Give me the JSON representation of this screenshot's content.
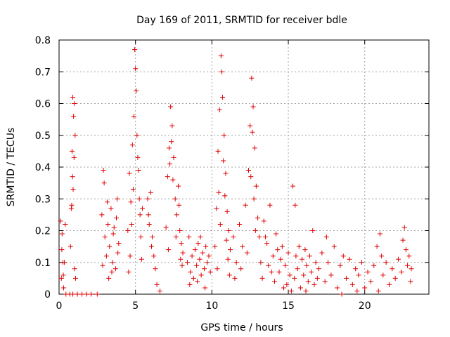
{
  "chart_data": {
    "type": "scatter",
    "title": "Day 169 of 2011, SRMTID for receiver bdle",
    "xlabel": "GPS time / hours",
    "ylabel": "SRMTID / TECUs",
    "xlim": [
      0,
      24.2
    ],
    "ylim": [
      0,
      0.8
    ],
    "xticks": [
      0,
      5,
      10,
      15,
      20
    ],
    "yticks": [
      0,
      0.1,
      0.2,
      0.3,
      0.4,
      0.5,
      0.6,
      0.7,
      0.8
    ],
    "xtick_labels": [
      "0",
      "5",
      "10",
      "15",
      "20"
    ],
    "ytick_labels": [
      "0",
      "0.1",
      "0.2",
      "0.3",
      "0.4",
      "0.5",
      "0.6",
      "0.7",
      "0.8"
    ],
    "grid": true,
    "marker": "+",
    "series_color": "#e00000",
    "series": [
      {
        "name": "SRMTID",
        "points": [
          [
            0.1,
            0.23
          ],
          [
            0.15,
            0.05
          ],
          [
            0.2,
            0.19
          ],
          [
            0.25,
            0.1
          ],
          [
            0.3,
            0.02
          ],
          [
            0.35,
            0.1
          ],
          [
            0.4,
            0.22
          ],
          [
            0.45,
            0.0
          ],
          [
            0.18,
            0.14
          ],
          [
            0.28,
            0.06
          ],
          [
            0.75,
            0.15
          ],
          [
            0.8,
            0.27
          ],
          [
            0.85,
            0.45
          ],
          [
            0.9,
            0.62
          ],
          [
            0.95,
            0.56
          ],
          [
            1.0,
            0.6
          ],
          [
            1.05,
            0.5
          ],
          [
            0.88,
            0.37
          ],
          [
            0.92,
            0.33
          ],
          [
            1.02,
            0.08
          ],
          [
            0.7,
            0.0
          ],
          [
            0.9,
            0.0
          ],
          [
            1.2,
            0.0
          ],
          [
            1.5,
            0.0
          ],
          [
            1.8,
            0.0
          ],
          [
            2.1,
            0.0
          ],
          [
            2.5,
            0.0
          ],
          [
            0.98,
            0.43
          ],
          [
            0.83,
            0.28
          ],
          [
            1.08,
            0.05
          ],
          [
            2.8,
            0.25
          ],
          [
            2.9,
            0.39
          ],
          [
            3.0,
            0.18
          ],
          [
            3.1,
            0.12
          ],
          [
            3.2,
            0.22
          ],
          [
            3.3,
            0.15
          ],
          [
            3.4,
            0.27
          ],
          [
            3.5,
            0.1
          ],
          [
            3.6,
            0.21
          ],
          [
            3.7,
            0.08
          ],
          [
            3.8,
            0.3
          ],
          [
            3.9,
            0.16
          ],
          [
            2.95,
            0.35
          ],
          [
            3.25,
            0.05
          ],
          [
            3.55,
            0.19
          ],
          [
            3.75,
            0.24
          ],
          [
            3.85,
            0.13
          ],
          [
            2.85,
            0.09
          ],
          [
            3.15,
            0.29
          ],
          [
            3.45,
            0.07
          ],
          [
            4.5,
            0.2
          ],
          [
            4.6,
            0.38
          ],
          [
            4.7,
            0.29
          ],
          [
            4.8,
            0.47
          ],
          [
            4.9,
            0.56
          ],
          [
            4.95,
            0.77
          ],
          [
            5.0,
            0.71
          ],
          [
            5.05,
            0.64
          ],
          [
            5.1,
            0.5
          ],
          [
            5.15,
            0.43
          ],
          [
            5.2,
            0.39
          ],
          [
            5.25,
            0.3
          ],
          [
            5.3,
            0.25
          ],
          [
            4.65,
            0.12
          ],
          [
            4.75,
            0.22
          ],
          [
            4.85,
            0.33
          ],
          [
            5.35,
            0.18
          ],
          [
            5.4,
            0.11
          ],
          [
            4.55,
            0.07
          ],
          [
            5.45,
            0.27
          ],
          [
            5.8,
            0.3
          ],
          [
            5.9,
            0.22
          ],
          [
            6.0,
            0.32
          ],
          [
            6.1,
            0.18
          ],
          [
            6.2,
            0.12
          ],
          [
            6.3,
            0.08
          ],
          [
            6.4,
            0.03
          ],
          [
            6.6,
            0.01
          ],
          [
            5.85,
            0.25
          ],
          [
            6.05,
            0.15
          ],
          [
            7.0,
            0.21
          ],
          [
            7.1,
            0.37
          ],
          [
            7.2,
            0.46
          ],
          [
            7.3,
            0.59
          ],
          [
            7.4,
            0.53
          ],
          [
            7.5,
            0.43
          ],
          [
            7.6,
            0.3
          ],
          [
            7.7,
            0.25
          ],
          [
            7.8,
            0.34
          ],
          [
            7.9,
            0.2
          ],
          [
            8.0,
            0.16
          ],
          [
            8.1,
            0.13
          ],
          [
            7.25,
            0.41
          ],
          [
            7.45,
            0.36
          ],
          [
            7.65,
            0.18
          ],
          [
            7.85,
            0.28
          ],
          [
            8.05,
            0.09
          ],
          [
            7.15,
            0.14
          ],
          [
            7.35,
            0.48
          ],
          [
            7.95,
            0.11
          ],
          [
            8.4,
            0.1
          ],
          [
            8.5,
            0.18
          ],
          [
            8.6,
            0.07
          ],
          [
            8.7,
            0.12
          ],
          [
            8.8,
            0.05
          ],
          [
            8.9,
            0.14
          ],
          [
            9.0,
            0.09
          ],
          [
            9.1,
            0.16
          ],
          [
            9.2,
            0.11
          ],
          [
            9.3,
            0.06
          ],
          [
            9.4,
            0.13
          ],
          [
            9.5,
            0.08
          ],
          [
            9.6,
            0.15
          ],
          [
            9.7,
            0.1
          ],
          [
            9.8,
            0.12
          ],
          [
            9.9,
            0.07
          ],
          [
            8.55,
            0.03
          ],
          [
            9.05,
            0.04
          ],
          [
            9.55,
            0.02
          ],
          [
            9.25,
            0.18
          ],
          [
            10.2,
            0.15
          ],
          [
            10.3,
            0.27
          ],
          [
            10.4,
            0.45
          ],
          [
            10.5,
            0.58
          ],
          [
            10.6,
            0.75
          ],
          [
            10.65,
            0.7
          ],
          [
            10.7,
            0.62
          ],
          [
            10.8,
            0.5
          ],
          [
            10.9,
            0.38
          ],
          [
            11.0,
            0.26
          ],
          [
            11.1,
            0.2
          ],
          [
            11.2,
            0.14
          ],
          [
            10.45,
            0.32
          ],
          [
            10.75,
            0.42
          ],
          [
            10.85,
            0.31
          ],
          [
            11.05,
            0.11
          ],
          [
            10.35,
            0.08
          ],
          [
            10.95,
            0.17
          ],
          [
            11.15,
            0.06
          ],
          [
            10.55,
            0.22
          ],
          [
            11.4,
            0.18
          ],
          [
            11.6,
            0.1
          ],
          [
            11.8,
            0.22
          ],
          [
            12.0,
            0.15
          ],
          [
            12.2,
            0.28
          ],
          [
            12.4,
            0.39
          ],
          [
            12.5,
            0.53
          ],
          [
            12.6,
            0.68
          ],
          [
            12.7,
            0.59
          ],
          [
            12.8,
            0.46
          ],
          [
            12.9,
            0.34
          ],
          [
            13.0,
            0.24
          ],
          [
            13.1,
            0.18
          ],
          [
            12.55,
            0.37
          ],
          [
            12.75,
            0.3
          ],
          [
            11.5,
            0.05
          ],
          [
            11.9,
            0.08
          ],
          [
            12.3,
            0.13
          ],
          [
            12.65,
            0.51
          ],
          [
            12.85,
            0.2
          ],
          [
            13.2,
            0.1
          ],
          [
            13.4,
            0.23
          ],
          [
            13.6,
            0.16
          ],
          [
            13.8,
            0.28
          ],
          [
            14.0,
            0.12
          ],
          [
            14.2,
            0.19
          ],
          [
            14.4,
            0.07
          ],
          [
            14.6,
            0.15
          ],
          [
            14.8,
            0.09
          ],
          [
            15.0,
            0.13
          ],
          [
            13.3,
            0.05
          ],
          [
            13.7,
            0.09
          ],
          [
            14.1,
            0.04
          ],
          [
            14.5,
            0.11
          ],
          [
            14.9,
            0.03
          ],
          [
            15.1,
            0.06
          ],
          [
            13.5,
            0.18
          ],
          [
            13.9,
            0.07
          ],
          [
            14.3,
            0.14
          ],
          [
            14.7,
            0.02
          ],
          [
            15.2,
            0.01
          ],
          [
            15.3,
            0.34
          ],
          [
            15.4,
            0.05
          ],
          [
            15.5,
            0.12
          ],
          [
            15.6,
            0.08
          ],
          [
            15.7,
            0.15
          ],
          [
            15.8,
            0.02
          ],
          [
            15.9,
            0.11
          ],
          [
            16.0,
            0.06
          ],
          [
            16.1,
            0.14
          ],
          [
            16.2,
            0.09
          ],
          [
            16.3,
            0.04
          ],
          [
            16.4,
            0.12
          ],
          [
            16.5,
            0.07
          ],
          [
            16.6,
            0.2
          ],
          [
            16.7,
            0.03
          ],
          [
            16.8,
            0.1
          ],
          [
            16.9,
            0.05
          ],
          [
            15.45,
            0.28
          ],
          [
            16.15,
            0.01
          ],
          [
            17.0,
            0.08
          ],
          [
            17.2,
            0.13
          ],
          [
            17.4,
            0.04
          ],
          [
            17.6,
            0.1
          ],
          [
            17.8,
            0.06
          ],
          [
            18.0,
            0.15
          ],
          [
            18.2,
            0.02
          ],
          [
            18.4,
            0.09
          ],
          [
            18.6,
            0.12
          ],
          [
            18.8,
            0.05
          ],
          [
            19.0,
            0.11
          ],
          [
            19.2,
            0.03
          ],
          [
            19.4,
            0.08
          ],
          [
            19.6,
            0.06
          ],
          [
            19.8,
            0.1
          ],
          [
            20.0,
            0.02
          ],
          [
            20.2,
            0.07
          ],
          [
            17.5,
            0.18
          ],
          [
            18.5,
            0.0
          ],
          [
            19.5,
            0.01
          ],
          [
            20.4,
            0.04
          ],
          [
            20.6,
            0.09
          ],
          [
            20.8,
            0.15
          ],
          [
            21.0,
            0.19
          ],
          [
            21.1,
            0.12
          ],
          [
            21.2,
            0.06
          ],
          [
            21.4,
            0.1
          ],
          [
            21.6,
            0.03
          ],
          [
            21.8,
            0.08
          ],
          [
            22.0,
            0.05
          ],
          [
            22.2,
            0.11
          ],
          [
            22.4,
            0.07
          ],
          [
            22.6,
            0.21
          ],
          [
            22.7,
            0.14
          ],
          [
            22.8,
            0.09
          ],
          [
            22.9,
            0.12
          ],
          [
            23.0,
            0.04
          ],
          [
            20.9,
            0.01
          ],
          [
            22.5,
            0.17
          ],
          [
            23.05,
            0.08
          ]
        ]
      }
    ]
  }
}
